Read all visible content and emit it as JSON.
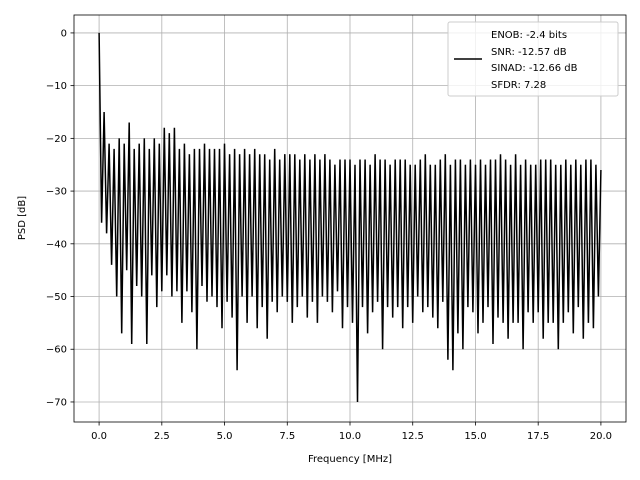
{
  "chart_data": {
    "type": "line",
    "title": "",
    "xlabel": "Frequency [MHz]",
    "ylabel": "PSD [dB]",
    "xlim": [
      -1.0,
      21.0
    ],
    "ylim": [
      -73.8,
      3.4
    ],
    "grid": true,
    "xticks": [
      0,
      2.5,
      5,
      7.5,
      10,
      12.5,
      15,
      17.5,
      20
    ],
    "xtick_labels": [
      "0.0",
      "2.5",
      "5.0",
      "7.5",
      "10.0",
      "12.5",
      "15.0",
      "17.5",
      "20.0"
    ],
    "yticks": [
      0,
      -10,
      -20,
      -30,
      -40,
      -50,
      -60,
      -70
    ],
    "ytick_labels": [
      "0",
      "−10",
      "−20",
      "−30",
      "−40",
      "−50",
      "−60",
      "−70"
    ],
    "legend_placement": "top-right",
    "legend": [
      "ENOB: -2.4 bits",
      "SNR: -12.57 dB",
      "SINAD: -12.66 dB",
      "SFDR: 7.28"
    ],
    "series": [
      {
        "name": "PSD",
        "color": "#000000",
        "x_start": 0,
        "x_step": 0.1,
        "values": [
          0,
          -36,
          -15,
          -38,
          -21,
          -44,
          -22,
          -50,
          -20,
          -57,
          -21,
          -45,
          -17,
          -59,
          -22,
          -48,
          -21,
          -50,
          -20,
          -59,
          -22,
          -46,
          -20,
          -52,
          -21,
          -49,
          -18,
          -46,
          -19,
          -50,
          -18,
          -49,
          -22,
          -55,
          -21,
          -49,
          -23,
          -53,
          -22,
          -60,
          -22,
          -48,
          -21,
          -51,
          -22,
          -50,
          -22,
          -52,
          -22,
          -56,
          -21,
          -51,
          -23,
          -54,
          -22,
          -64,
          -23,
          -50,
          -22,
          -55,
          -23,
          -50,
          -22,
          -56,
          -23,
          -52,
          -23,
          -58,
          -24,
          -51,
          -22,
          -53,
          -24,
          -50,
          -23,
          -51,
          -23,
          -55,
          -23,
          -52,
          -24,
          -50,
          -23,
          -54,
          -24,
          -51,
          -23,
          -55,
          -24,
          -50,
          -23,
          -51,
          -24,
          -53,
          -25,
          -49,
          -24,
          -56,
          -24,
          -52,
          -24,
          -55,
          -25,
          -70,
          -24,
          -52,
          -24,
          -57,
          -25,
          -53,
          -23,
          -51,
          -24,
          -60,
          -24,
          -52,
          -25,
          -54,
          -24,
          -52,
          -24,
          -56,
          -24,
          -52,
          -25,
          -55,
          -25,
          -50,
          -24,
          -53,
          -23,
          -52,
          -25,
          -54,
          -25,
          -56,
          -24,
          -51,
          -23,
          -62,
          -25,
          -64,
          -24,
          -57,
          -24,
          -60,
          -25,
          -52,
          -24,
          -53,
          -25,
          -57,
          -24,
          -55,
          -25,
          -52,
          -24,
          -59,
          -24,
          -54,
          -23,
          -55,
          -24,
          -58,
          -25,
          -55,
          -23,
          -55,
          -25,
          -60,
          -24,
          -53,
          -25,
          -55,
          -25,
          -53,
          -24,
          -58,
          -24,
          -55,
          -24,
          -55,
          -25,
          -60,
          -25,
          -55,
          -24,
          -53,
          -25,
          -57,
          -24,
          -52,
          -25,
          -58,
          -24,
          -55,
          -24,
          -56,
          -25,
          -50,
          -26
        ]
      }
    ]
  }
}
